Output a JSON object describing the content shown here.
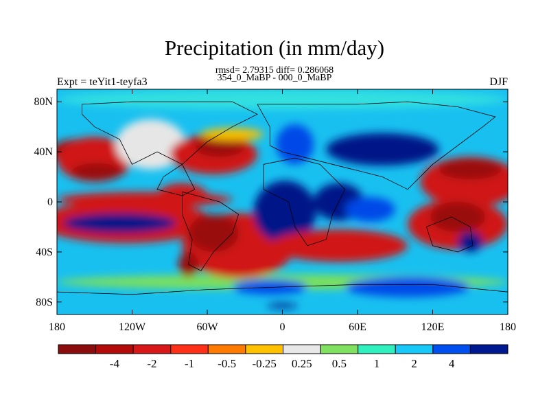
{
  "title": "Precipitation (in mm/day)",
  "subtitle_stats": "rmsd= 2.79315 diff= 0.286068",
  "subtitle_periods": "354_0_MaBP - 000_0_MaBP",
  "left_label": "Expt = teYit1-teyfa3",
  "right_label": "DJF",
  "map": {
    "projection": "cylindrical-equidistant",
    "lon_range": [
      -180,
      180
    ],
    "lat_range": [
      -90,
      90
    ],
    "lon_ticks": [
      {
        "value": -180,
        "label": "180"
      },
      {
        "value": -120,
        "label": "120W"
      },
      {
        "value": -60,
        "label": "60W"
      },
      {
        "value": 0,
        "label": "0"
      },
      {
        "value": 60,
        "label": "60E"
      },
      {
        "value": 120,
        "label": "120E"
      },
      {
        "value": 180,
        "label": "180"
      }
    ],
    "lat_ticks": [
      {
        "value": 80,
        "label": "80N"
      },
      {
        "value": 40,
        "label": "40N"
      },
      {
        "value": 0,
        "label": "0"
      },
      {
        "value": -40,
        "label": "40S"
      },
      {
        "value": -80,
        "label": "80S"
      }
    ],
    "ocean_color": "#18c0f0",
    "field_regions": [
      {
        "label_level": "1",
        "color": "#30e0e0",
        "lon": 0,
        "lat": 82,
        "rlon": 180,
        "rlat": 8
      },
      {
        "label_level": "0.5",
        "color": "#7ce05c",
        "lon": 0,
        "lat": -64,
        "rlon": 180,
        "rlat": 6
      },
      {
        "label_level": "-4",
        "color": "#9a0a0a",
        "lon": -165,
        "lat": 40,
        "rlon": 20,
        "rlat": 10
      },
      {
        "label_level": "-2",
        "color": "#d01818",
        "lon": -150,
        "lat": 34,
        "rlon": 30,
        "rlat": 18
      },
      {
        "label_level": "-4",
        "color": "#9a0a0a",
        "lon": -148,
        "lat": 24,
        "rlon": 20,
        "rlat": 7
      },
      {
        "label_level": "0.25",
        "color": "#e6e6e6",
        "lon": -105,
        "lat": 46,
        "rlon": 28,
        "rlat": 20
      },
      {
        "label_level": "-2",
        "color": "#d01818",
        "lon": -55,
        "lat": 38,
        "rlon": 35,
        "rlat": 16
      },
      {
        "label_level": "-4",
        "color": "#9a0a0a",
        "lon": -50,
        "lat": 44,
        "rlon": 20,
        "rlat": 8
      },
      {
        "label_level": "-0.25",
        "color": "#f8c000",
        "lon": -40,
        "lat": 54,
        "rlon": 25,
        "rlat": 5
      },
      {
        "label_level": "4",
        "color": "#001888",
        "lon": 80,
        "lat": 42,
        "rlon": 45,
        "rlat": 13
      },
      {
        "label_level": "2",
        "color": "#0048e8",
        "lon": 10,
        "lat": 46,
        "rlon": 15,
        "rlat": 16
      },
      {
        "label_level": "-2",
        "color": "#d01818",
        "lon": 150,
        "lat": 16,
        "rlon": 40,
        "rlat": 20
      },
      {
        "label_level": "-4",
        "color": "#9a0a0a",
        "lon": 150,
        "lat": 26,
        "rlon": 25,
        "rlat": 8
      },
      {
        "label_level": "-2",
        "color": "#d01818",
        "lon": -110,
        "lat": 2,
        "rlon": 70,
        "rlat": 6
      },
      {
        "label_level": "-2",
        "color": "#d01818",
        "lon": -125,
        "lat": -16,
        "rlon": 70,
        "rlat": 17
      },
      {
        "label_level": "4",
        "color": "#001888",
        "lon": -130,
        "lat": -17,
        "rlon": 45,
        "rlat": 8
      },
      {
        "label_level": "-2",
        "color": "#d01818",
        "lon": -80,
        "lat": 5,
        "rlon": 20,
        "rlat": 10
      },
      {
        "label_level": "-2",
        "color": "#d01818",
        "lon": -35,
        "lat": -35,
        "rlon": 45,
        "rlat": 26
      },
      {
        "label_level": "-4",
        "color": "#9a0a0a",
        "lon": -55,
        "lat": -25,
        "rlon": 20,
        "rlat": 15
      },
      {
        "label_level": "-4",
        "color": "#9a0a0a",
        "lon": -75,
        "lat": -50,
        "rlon": 8,
        "rlat": 10
      },
      {
        "label_level": "4",
        "color": "#001888",
        "lon": 2,
        "lat": -8,
        "rlon": 25,
        "rlat": 25
      },
      {
        "label_level": "4",
        "color": "#001888",
        "lon": 45,
        "lat": 0,
        "rlon": 20,
        "rlat": 15
      },
      {
        "label_level": "2",
        "color": "#0048e8",
        "lon": 70,
        "lat": -6,
        "rlon": 20,
        "rlat": 10
      },
      {
        "label_level": "-2",
        "color": "#d01818",
        "lon": 45,
        "lat": -35,
        "rlon": 55,
        "rlat": 13
      },
      {
        "label_level": "-2",
        "color": "#d01818",
        "lon": 140,
        "lat": -18,
        "rlon": 40,
        "rlat": 20
      },
      {
        "label_level": "-4",
        "color": "#9a0a0a",
        "lon": 140,
        "lat": -12,
        "rlon": 22,
        "rlat": 12
      },
      {
        "label_level": "4",
        "color": "#001888",
        "lon": 150,
        "lat": -32,
        "rlon": 10,
        "rlat": 8
      },
      {
        "label_level": "2",
        "color": "#0048e8",
        "lon": 100,
        "lat": -68,
        "rlon": 50,
        "rlat": 8
      },
      {
        "label_level": "2",
        "color": "#0048e8",
        "lon": -10,
        "lat": -68,
        "rlon": 30,
        "rlat": 6
      },
      {
        "label_level": "4",
        "color": "#001888",
        "lon": 0,
        "lat": -83,
        "rlon": 12,
        "rlat": 2
      }
    ],
    "coastlines": [
      [
        [
          -160,
          78
        ],
        [
          -120,
          80
        ],
        [
          -40,
          80
        ],
        [
          -20,
          70
        ],
        [
          -40,
          60
        ],
        [
          -60,
          48
        ],
        [
          -80,
          30
        ],
        [
          -95,
          20
        ],
        [
          -100,
          10
        ],
        [
          -80,
          5
        ],
        [
          -70,
          10
        ],
        [
          -80,
          30
        ],
        [
          -100,
          40
        ],
        [
          -120,
          30
        ],
        [
          -130,
          50
        ],
        [
          -150,
          60
        ],
        [
          -160,
          70
        ],
        [
          -160,
          78
        ]
      ],
      [
        [
          -80,
          8
        ],
        [
          -50,
          0
        ],
        [
          -35,
          -10
        ],
        [
          -40,
          -25
        ],
        [
          -55,
          -40
        ],
        [
          -65,
          -55
        ],
        [
          -75,
          -50
        ],
        [
          -72,
          -30
        ],
        [
          -80,
          -10
        ],
        [
          -80,
          8
        ]
      ],
      [
        [
          -20,
          78
        ],
        [
          20,
          78
        ],
        [
          60,
          78
        ],
        [
          100,
          80
        ],
        [
          140,
          76
        ],
        [
          170,
          68
        ],
        [
          160,
          60
        ],
        [
          140,
          45
        ],
        [
          120,
          30
        ],
        [
          110,
          20
        ],
        [
          100,
          10
        ],
        [
          80,
          20
        ],
        [
          60,
          25
        ],
        [
          40,
          30
        ],
        [
          20,
          35
        ],
        [
          0,
          40
        ],
        [
          -10,
          45
        ],
        [
          -10,
          60
        ],
        [
          -20,
          78
        ]
      ],
      [
        [
          -15,
          30
        ],
        [
          10,
          35
        ],
        [
          30,
          30
        ],
        [
          50,
          10
        ],
        [
          40,
          -10
        ],
        [
          35,
          -30
        ],
        [
          20,
          -35
        ],
        [
          10,
          -20
        ],
        [
          5,
          0
        ],
        [
          -15,
          10
        ],
        [
          -15,
          30
        ]
      ],
      [
        [
          115,
          -20
        ],
        [
          135,
          -12
        ],
        [
          150,
          -20
        ],
        [
          152,
          -35
        ],
        [
          140,
          -40
        ],
        [
          120,
          -35
        ],
        [
          115,
          -20
        ]
      ],
      [
        [
          -180,
          -72
        ],
        [
          -120,
          -74
        ],
        [
          -60,
          -70
        ],
        [
          0,
          -68
        ],
        [
          60,
          -66
        ],
        [
          120,
          -66
        ],
        [
          180,
          -72
        ]
      ]
    ]
  },
  "colorbar": {
    "colors": [
      "#8a0c0c",
      "#b40a0a",
      "#d81818",
      "#ff3018",
      "#ff7a00",
      "#ffc000",
      "#e8e8e8",
      "#80e060",
      "#30f0c0",
      "#18c8f8",
      "#0050f0",
      "#001890"
    ],
    "labels": [
      "-4",
      "-2",
      "-1",
      "-0.5",
      "-0.25",
      "0.25",
      "0.5",
      "1",
      "2",
      "4"
    ]
  }
}
